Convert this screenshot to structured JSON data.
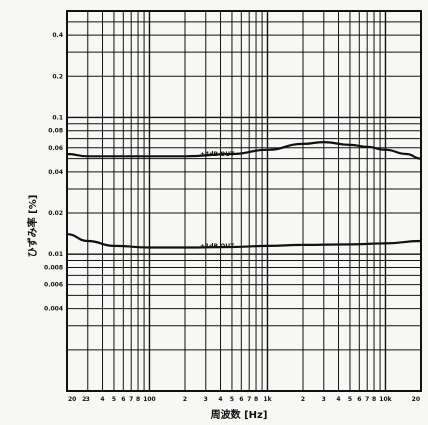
{
  "chart_data": {
    "type": "line",
    "title": "",
    "xlabel": "周波数 [Hz]",
    "ylabel": "ひずみ率 [%]",
    "x_scale": "log",
    "y_scale": "log",
    "xlim": [
      20,
      20000
    ],
    "ylim": [
      0.001,
      0.6
    ],
    "grid": true,
    "x_tick_labels": [
      "20",
      "2",
      "3",
      "4",
      "5",
      "6",
      "7",
      "8",
      "100",
      "2",
      "3",
      "4",
      "5",
      "6",
      "7",
      "8",
      "1k",
      "2",
      "3",
      "4",
      "5",
      "6",
      "7",
      "8",
      "10k",
      "20"
    ],
    "y_tick_labels": [
      "0.4",
      "0.2",
      "0.1",
      "0.08",
      "0.06",
      "0.04",
      "0.02",
      "0.01",
      "0.008",
      "0.006",
      "0.004"
    ],
    "annotations": [
      "+4dB OUT",
      "+1dB OUT"
    ],
    "series": [
      {
        "name": "+4dB OUT",
        "x": [
          20,
          30,
          50,
          100,
          200,
          500,
          1000,
          2000,
          3000,
          5000,
          7000,
          10000,
          15000,
          20000
        ],
        "y": [
          0.054,
          0.052,
          0.052,
          0.052,
          0.052,
          0.054,
          0.058,
          0.064,
          0.066,
          0.063,
          0.061,
          0.058,
          0.054,
          0.05
        ]
      },
      {
        "name": "+1dB OUT",
        "x": [
          20,
          30,
          50,
          100,
          200,
          500,
          1000,
          2000,
          5000,
          10000,
          20000
        ],
        "y": [
          0.014,
          0.0125,
          0.0115,
          0.0112,
          0.0112,
          0.0113,
          0.0115,
          0.0117,
          0.0118,
          0.012,
          0.0125
        ]
      }
    ]
  }
}
